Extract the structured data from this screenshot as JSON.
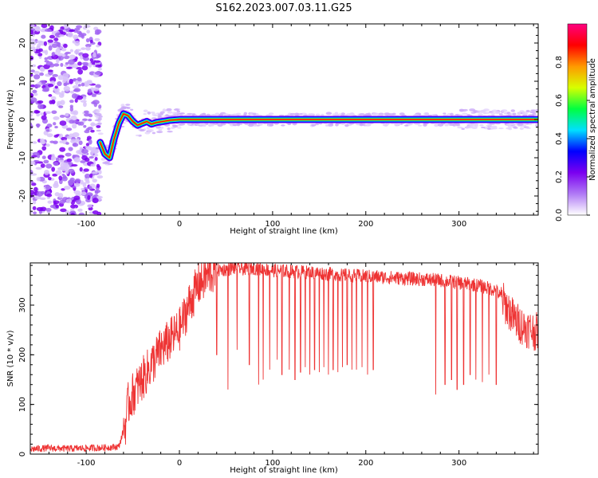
{
  "figure_title": "S162.2023.007.03.11.G25",
  "chart_data": [
    {
      "type": "heatmap",
      "title": "S162.2023.007.03.11.G25",
      "xlabel": "Height of straight line (km)",
      "ylabel": "Frequency (Hz)",
      "xlim": [
        -160,
        385
      ],
      "ylim": [
        -25,
        25
      ],
      "x_ticks": [
        -100,
        0,
        100,
        200,
        300
      ],
      "y_ticks": [
        -20,
        -10,
        0,
        10,
        20
      ],
      "colorbar": {
        "label": "Normalized spectral amplitude",
        "range": [
          0.0,
          1.0
        ],
        "ticks": [
          0.0,
          0.2,
          0.4,
          0.6,
          0.8
        ],
        "tick_labels": [
          "0.0",
          "0.2",
          "0.4",
          "0.6",
          "0.8"
        ],
        "colormap": [
          "#ffffff",
          "#b07af5",
          "#7b00f0",
          "#0000ff",
          "#00e0ff",
          "#00ff40",
          "#d8ff00",
          "#ff9900",
          "#ff0000",
          "#ff0080"
        ]
      },
      "noise_region_x": [
        -160,
        -85
      ],
      "carrier_frequency_trace": {
        "x": [
          -85,
          -80,
          -75,
          -70,
          -65,
          -60,
          -55,
          -50,
          -45,
          -40,
          -35,
          -30,
          -25,
          -20,
          -15,
          -10,
          0,
          50,
          100,
          150,
          200,
          250,
          300,
          350,
          385
        ],
        "y": [
          -6,
          -9,
          -10,
          -5,
          -1,
          1.5,
          1,
          -0.5,
          -1.5,
          -1,
          -0.5,
          -1.2,
          -0.8,
          -0.6,
          -0.4,
          -0.2,
          0,
          0,
          0,
          0,
          0,
          0,
          0,
          0,
          0
        ]
      },
      "grid": false
    },
    {
      "type": "line",
      "title": "",
      "xlabel": "Height of straight line (km)",
      "ylabel": "SNR (10 * v/v)",
      "xlim": [
        -160,
        385
      ],
      "ylim": [
        0,
        385
      ],
      "x_ticks": [
        -100,
        0,
        100,
        200,
        300
      ],
      "y_ticks": [
        0,
        100,
        200,
        300
      ],
      "series": [
        {
          "color": "#ee3333",
          "x": [
            -160,
            -140,
            -120,
            -100,
            -80,
            -65,
            -58,
            -55,
            -50,
            -40,
            -30,
            -20,
            -10,
            0,
            10,
            20,
            30,
            40,
            50,
            60,
            70,
            80,
            90,
            100,
            120,
            140,
            160,
            180,
            200,
            220,
            240,
            260,
            280,
            300,
            320,
            340,
            350,
            360,
            370,
            385
          ],
          "y": [
            10,
            12,
            11,
            12,
            13,
            15,
            60,
            100,
            120,
            150,
            180,
            210,
            230,
            250,
            300,
            340,
            360,
            370,
            372,
            375,
            373,
            375,
            372,
            370,
            368,
            366,
            363,
            360,
            358,
            356,
            354,
            352,
            350,
            345,
            340,
            330,
            300,
            270,
            255,
            245
          ]
        }
      ],
      "dropouts": {
        "x": [
          40,
          52,
          62,
          75,
          85,
          90,
          97,
          105,
          110,
          118,
          124,
          130,
          135,
          140,
          145,
          150,
          155,
          160,
          165,
          170,
          175,
          180,
          185,
          190,
          196,
          202,
          208,
          275,
          285,
          292,
          298,
          305,
          312,
          318,
          325,
          332,
          340
        ],
        "y": [
          200,
          130,
          210,
          180,
          140,
          150,
          170,
          190,
          160,
          170,
          150,
          165,
          175,
          160,
          170,
          165,
          175,
          160,
          170,
          165,
          175,
          180,
          170,
          170,
          175,
          160,
          170,
          120,
          140,
          150,
          130,
          140,
          160,
          150,
          145,
          160,
          140
        ]
      },
      "grid": false
    }
  ]
}
